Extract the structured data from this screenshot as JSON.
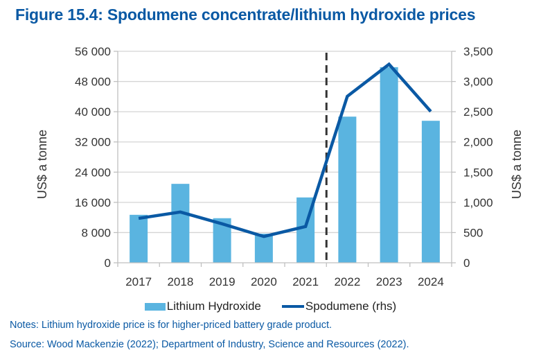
{
  "title": "Figure 15.4: Spodumene concentrate/lithium hydroxide prices",
  "chart_data": {
    "type": "bar",
    "title": "Figure 15.4: Spodumene concentrate/lithium hydroxide prices",
    "categories": [
      "2017",
      "2018",
      "2019",
      "2020",
      "2021",
      "2022",
      "2023",
      "2024"
    ],
    "series": [
      {
        "name": "Lithium Hydroxide",
        "type": "bar",
        "axis": "left",
        "color": "#5ab4e0",
        "values": [
          12700,
          20900,
          11800,
          7700,
          17300,
          38700,
          51800,
          37600
        ]
      },
      {
        "name": "Spodumene (rhs)",
        "type": "line",
        "axis": "right",
        "color": "#0a59a4",
        "values": [
          735,
          840,
          645,
          435,
          600,
          2755,
          3285,
          2505
        ]
      }
    ],
    "ylabel": "US$ a tonne",
    "ylabel_right": "US$ a tonne",
    "ylim": [
      0,
      56000
    ],
    "ylim_right": [
      0,
      3500
    ],
    "yticks": [
      "0",
      "8 000",
      "16 000",
      "24 000",
      "32 000",
      "40 000",
      "48 000",
      "56 000"
    ],
    "yticks_right": [
      "0",
      "500",
      "1,000",
      "1,500",
      "2,000",
      "2,500",
      "3,000",
      "3,500"
    ],
    "forecast_divider_between": [
      "2021",
      "2022"
    ],
    "grid": true,
    "legend_position": "bottom"
  },
  "legend": {
    "bar_label": "Lithium Hydroxide",
    "line_label": "Spodumene (rhs)"
  },
  "notes": "Notes: Lithium hydroxide price is for higher-priced battery grade product.",
  "source": "Source: Wood Mackenzie (2022); Department of Industry, Science and Resources (2022)."
}
